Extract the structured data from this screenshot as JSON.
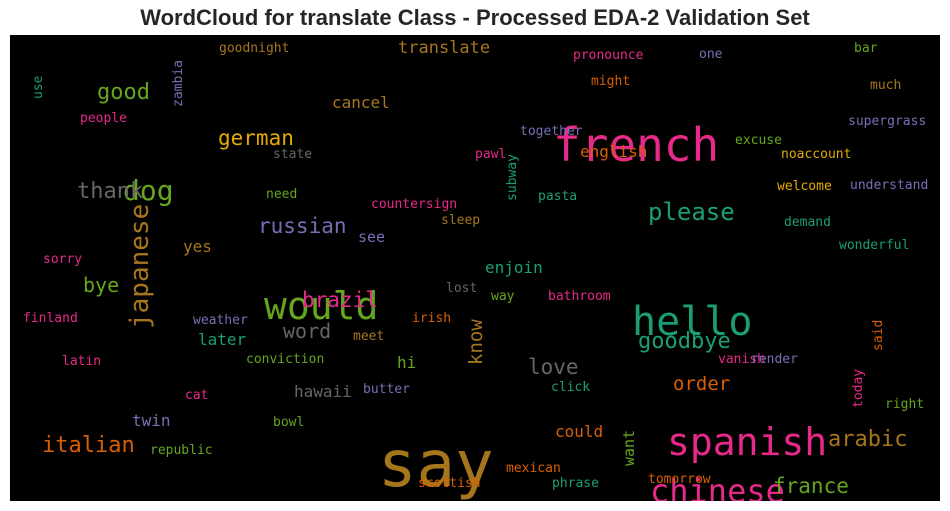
{
  "chart_data": {
    "type": "wordcloud",
    "title": "WordCloud for translate Class - Processed EDA-2 Validation Set",
    "background": "#000000",
    "words": [
      {
        "text": "say",
        "color": "#a6761d"
      },
      {
        "text": "french",
        "color": "#e7298a"
      },
      {
        "text": "would",
        "color": "#66a61e"
      },
      {
        "text": "hello",
        "color": "#1b9e77"
      },
      {
        "text": "spanish",
        "color": "#e7298a"
      },
      {
        "text": "chinese",
        "color": "#e7298a"
      },
      {
        "text": "dog",
        "color": "#66a61e"
      },
      {
        "text": "japanese",
        "color": "#a6761d"
      },
      {
        "text": "please",
        "color": "#1b9e77"
      },
      {
        "text": "german",
        "color": "#e6ab02"
      },
      {
        "text": "thank",
        "color": "#666666"
      },
      {
        "text": "good",
        "color": "#66a61e"
      },
      {
        "text": "italian",
        "color": "#d95f02"
      },
      {
        "text": "goodbye",
        "color": "#1b9e77"
      },
      {
        "text": "arabic",
        "color": "#a6761d"
      },
      {
        "text": "russian",
        "color": "#7570b3"
      },
      {
        "text": "brazil",
        "color": "#e7298a"
      },
      {
        "text": "word",
        "color": "#666666"
      },
      {
        "text": "love",
        "color": "#666666"
      },
      {
        "text": "order",
        "color": "#d95f02"
      },
      {
        "text": "france",
        "color": "#66a61e"
      },
      {
        "text": "know",
        "color": "#a6761d"
      },
      {
        "text": "bye",
        "color": "#66a61e"
      },
      {
        "text": "translate",
        "color": "#a6761d"
      },
      {
        "text": "cancel",
        "color": "#a6761d"
      },
      {
        "text": "english",
        "color": "#d95f02"
      },
      {
        "text": "hawaii",
        "color": "#666666"
      },
      {
        "text": "twin",
        "color": "#7570b3"
      },
      {
        "text": "could",
        "color": "#d95f02"
      },
      {
        "text": "enjoin",
        "color": "#1b9e77"
      },
      {
        "text": "later",
        "color": "#1b9e77"
      },
      {
        "text": "want",
        "color": "#66a61e"
      },
      {
        "text": "yes",
        "color": "#a6761d"
      },
      {
        "text": "hi",
        "color": "#66a61e"
      },
      {
        "text": "see",
        "color": "#7570b3"
      },
      {
        "text": "goodnight",
        "color": "#a6761d"
      },
      {
        "text": "pronounce",
        "color": "#e7298a"
      },
      {
        "text": "one",
        "color": "#7570b3"
      },
      {
        "text": "bar",
        "color": "#66a61e"
      },
      {
        "text": "might",
        "color": "#d95f02"
      },
      {
        "text": "much",
        "color": "#a6761d"
      },
      {
        "text": "use",
        "color": "#1b9e77"
      },
      {
        "text": "zambia",
        "color": "#7570b3"
      },
      {
        "text": "people",
        "color": "#e7298a"
      },
      {
        "text": "together",
        "color": "#7570b3"
      },
      {
        "text": "supergrass",
        "color": "#7570b3"
      },
      {
        "text": "excuse",
        "color": "#66a61e"
      },
      {
        "text": "state",
        "color": "#666666"
      },
      {
        "text": "pawl",
        "color": "#e7298a"
      },
      {
        "text": "subway",
        "color": "#1b9e77"
      },
      {
        "text": "noaccount",
        "color": "#e6ab02"
      },
      {
        "text": "need",
        "color": "#66a61e"
      },
      {
        "text": "welcome",
        "color": "#e6ab02"
      },
      {
        "text": "understand",
        "color": "#7570b3"
      },
      {
        "text": "countersign",
        "color": "#e7298a"
      },
      {
        "text": "pasta",
        "color": "#1b9e77"
      },
      {
        "text": "sleep",
        "color": "#a6761d"
      },
      {
        "text": "demand",
        "color": "#1b9e77"
      },
      {
        "text": "wonderful",
        "color": "#1b9e77"
      },
      {
        "text": "sorry",
        "color": "#e7298a"
      },
      {
        "text": "lost",
        "color": "#666666"
      },
      {
        "text": "way",
        "color": "#66a61e"
      },
      {
        "text": "bathroom",
        "color": "#e7298a"
      },
      {
        "text": "finland",
        "color": "#e7298a"
      },
      {
        "text": "weather",
        "color": "#7570b3"
      },
      {
        "text": "irish",
        "color": "#d95f02"
      },
      {
        "text": "meet",
        "color": "#a6761d"
      },
      {
        "text": "said",
        "color": "#d95f02"
      },
      {
        "text": "latin",
        "color": "#e7298a"
      },
      {
        "text": "conviction",
        "color": "#66a61e"
      },
      {
        "text": "vanish",
        "color": "#e7298a"
      },
      {
        "text": "render",
        "color": "#7570b3"
      },
      {
        "text": "butter",
        "color": "#7570b3"
      },
      {
        "text": "cat",
        "color": "#e7298a"
      },
      {
        "text": "click",
        "color": "#1b9e77"
      },
      {
        "text": "today",
        "color": "#e7298a"
      },
      {
        "text": "right",
        "color": "#66a61e"
      },
      {
        "text": "bowl",
        "color": "#66a61e"
      },
      {
        "text": "republic",
        "color": "#66a61e"
      },
      {
        "text": "mexican",
        "color": "#d95f02"
      },
      {
        "text": "tomorrow",
        "color": "#d95f02"
      },
      {
        "text": "scottish",
        "color": "#d95f02"
      },
      {
        "text": "phrase",
        "color": "#1b9e77"
      }
    ]
  }
}
